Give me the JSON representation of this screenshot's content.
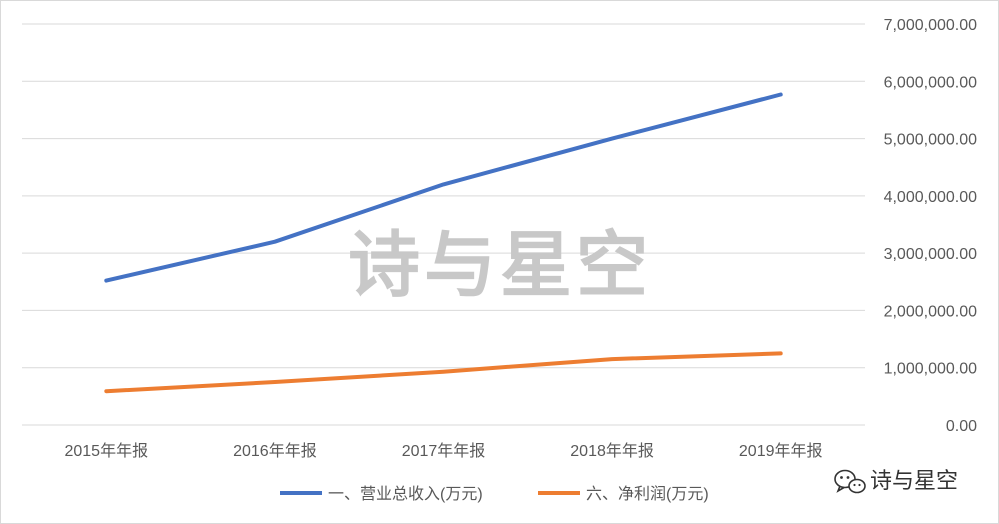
{
  "chart_data": {
    "type": "line",
    "title": "",
    "xlabel": "",
    "ylabel": "",
    "categories": [
      "2015年年报",
      "2016年年报",
      "2017年年报",
      "2018年年报",
      "2019年年报"
    ],
    "ylim": [
      0,
      7000000
    ],
    "yticks": [
      "0.00",
      "1,000,000.00",
      "2,000,000.00",
      "3,000,000.00",
      "4,000,000.00",
      "5,000,000.00",
      "6,000,000.00",
      "7,000,000.00"
    ],
    "y_axis_side": "right",
    "grid": true,
    "legend_position": "bottom",
    "series": [
      {
        "name": "一、营业总收入(万元)",
        "color": "#4472c4",
        "values": [
          2520000,
          3200000,
          4200000,
          5000000,
          5770000
        ]
      },
      {
        "name": "六、净利润(万元)",
        "color": "#ed7d31",
        "values": [
          590000,
          750000,
          930000,
          1150000,
          1250000
        ]
      }
    ]
  },
  "watermark": {
    "text": "诗与星空"
  },
  "brand": {
    "text": "诗与星空",
    "icon": "wechat-icon"
  }
}
